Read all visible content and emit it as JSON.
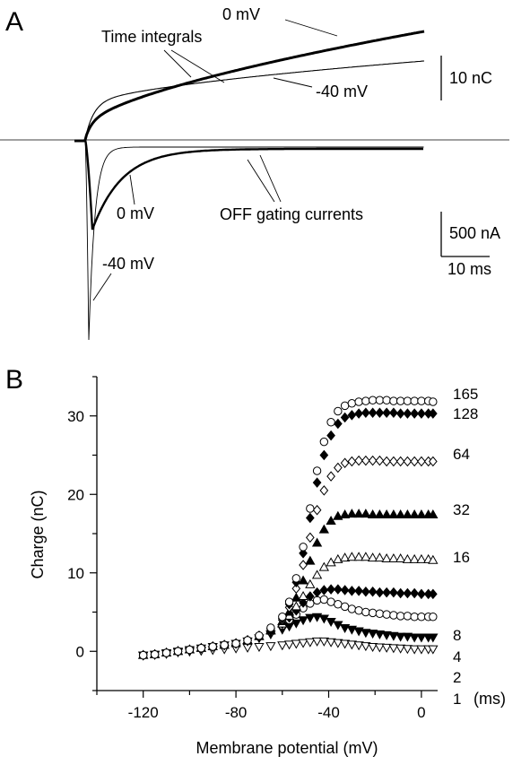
{
  "chart_data": [
    {
      "panel_label": "A",
      "type": "line",
      "annotations": {
        "time_integrals": "Time integrals",
        "off_gating_currents": "OFF gating currents"
      },
      "scalebars": {
        "charge": "10 nC",
        "current": "500 nA",
        "time": "10 ms"
      },
      "series": [
        {
          "name": "0 mV",
          "kind": "time-integral",
          "note_label": "0 mV"
        },
        {
          "name": "-40 mV",
          "kind": "time-integral",
          "note_label": "-40 mV"
        },
        {
          "name": "0 mV",
          "kind": "off-gating-current",
          "note_label": "0 mV"
        },
        {
          "name": "-40 mV",
          "kind": "off-gating-current",
          "note_label": "-40 mV"
        }
      ]
    },
    {
      "panel_label": "B",
      "type": "scatter",
      "xlabel": "Membrane potential (mV)",
      "ylabel": "Charge (nC)",
      "xlim": [
        -140,
        7
      ],
      "ylim": [
        -5,
        35
      ],
      "xticks": [
        -120,
        -80,
        -40,
        0
      ],
      "yticks": [
        0,
        10,
        20,
        30
      ],
      "unit_label": "(ms)",
      "x": [
        -120,
        -115,
        -110,
        -105,
        -100,
        -95,
        -90,
        -85,
        -80,
        -75,
        -70,
        -65,
        -60,
        -57,
        -54,
        -51,
        -48,
        -45,
        -42,
        -39,
        -36,
        -33,
        -30,
        -27,
        -24,
        -21,
        -18,
        -15,
        -12,
        -9,
        -6,
        -3,
        0,
        3,
        5
      ],
      "series": [
        {
          "name": "1",
          "marker": "open-triangle-down",
          "values": [
            -0.5,
            -0.4,
            -0.3,
            -0.1,
            0.0,
            0.1,
            0.2,
            0.3,
            0.4,
            0.5,
            0.6,
            0.7,
            0.8,
            0.9,
            1.0,
            1.1,
            1.2,
            1.3,
            1.3,
            1.2,
            1.1,
            1.0,
            0.9,
            0.8,
            0.7,
            0.6,
            0.55,
            0.5,
            0.45,
            0.4,
            0.35,
            0.3,
            0.3,
            0.3,
            0.3
          ]
        },
        {
          "name": "2",
          "marker": "filled-triangle-down",
          "values": [
            -0.5,
            -0.4,
            -0.2,
            0.0,
            0.2,
            0.4,
            0.6,
            0.8,
            1.0,
            1.3,
            1.7,
            2.2,
            2.8,
            3.2,
            3.6,
            4.0,
            4.3,
            4.4,
            4.2,
            3.8,
            3.4,
            3.0,
            2.8,
            2.6,
            2.4,
            2.3,
            2.2,
            2.1,
            2.0,
            1.9,
            1.9,
            1.8,
            1.8,
            1.8,
            1.8
          ]
        },
        {
          "name": "4",
          "marker": "open-circle",
          "values": [
            -0.5,
            -0.4,
            -0.2,
            0.0,
            0.2,
            0.4,
            0.6,
            0.8,
            1.0,
            1.4,
            1.9,
            2.5,
            3.3,
            4.0,
            4.7,
            5.5,
            6.1,
            6.5,
            6.6,
            6.3,
            6.0,
            5.7,
            5.4,
            5.2,
            5.0,
            4.9,
            4.8,
            4.7,
            4.6,
            4.5,
            4.5,
            4.4,
            4.4,
            4.4,
            4.4
          ]
        },
        {
          "name": "8",
          "marker": "filled-diamond",
          "values": [
            -0.5,
            -0.4,
            -0.2,
            0.0,
            0.2,
            0.4,
            0.6,
            0.8,
            1.0,
            1.4,
            1.9,
            2.6,
            3.5,
            4.3,
            5.2,
            6.2,
            7.0,
            7.5,
            7.8,
            7.9,
            7.9,
            7.8,
            7.7,
            7.7,
            7.6,
            7.6,
            7.5,
            7.5,
            7.5,
            7.4,
            7.4,
            7.4,
            7.3,
            7.3,
            7.3
          ]
        },
        {
          "name": "16",
          "marker": "open-triangle-up",
          "values": [
            -0.5,
            -0.4,
            -0.2,
            0.0,
            0.2,
            0.4,
            0.6,
            0.8,
            1.0,
            1.4,
            1.9,
            2.6,
            3.5,
            4.5,
            5.7,
            7.0,
            8.5,
            9.7,
            10.7,
            11.3,
            11.7,
            11.9,
            12.0,
            12.0,
            12.0,
            11.9,
            11.9,
            11.8,
            11.8,
            11.8,
            11.7,
            11.7,
            11.7,
            11.7,
            11.6
          ]
        },
        {
          "name": "32",
          "marker": "filled-triangle-up",
          "values": [
            -0.5,
            -0.4,
            -0.2,
            0.0,
            0.2,
            0.4,
            0.6,
            0.8,
            1.0,
            1.4,
            1.9,
            2.7,
            3.8,
            5.0,
            6.8,
            9.0,
            11.5,
            13.8,
            15.5,
            16.6,
            17.2,
            17.4,
            17.5,
            17.5,
            17.5,
            17.4,
            17.4,
            17.4,
            17.4,
            17.4,
            17.4,
            17.4,
            17.4,
            17.4,
            17.4
          ]
        },
        {
          "name": "64",
          "marker": "open-diamond",
          "values": [
            -0.5,
            -0.4,
            -0.2,
            0.0,
            0.2,
            0.4,
            0.6,
            0.8,
            1.0,
            1.4,
            1.9,
            2.8,
            4.0,
            5.6,
            8.0,
            11.0,
            14.5,
            18.0,
            20.5,
            22.3,
            23.4,
            24.0,
            24.2,
            24.3,
            24.3,
            24.3,
            24.3,
            24.2,
            24.2,
            24.2,
            24.2,
            24.2,
            24.2,
            24.2,
            24.2
          ]
        },
        {
          "name": "128",
          "marker": "filled-diamond",
          "values": [
            -0.5,
            -0.4,
            -0.2,
            0.0,
            0.2,
            0.4,
            0.6,
            0.8,
            1.0,
            1.4,
            2.0,
            2.9,
            4.2,
            6.0,
            8.8,
            12.5,
            17.0,
            21.5,
            25.0,
            27.5,
            29.0,
            29.8,
            30.1,
            30.3,
            30.4,
            30.4,
            30.4,
            30.4,
            30.4,
            30.3,
            30.3,
            30.3,
            30.3,
            30.3,
            30.3
          ]
        },
        {
          "name": "165",
          "marker": "open-circle",
          "values": [
            -0.5,
            -0.4,
            -0.2,
            0.0,
            0.2,
            0.4,
            0.6,
            0.8,
            1.0,
            1.4,
            2.0,
            3.0,
            4.4,
            6.3,
            9.3,
            13.3,
            18.2,
            23.0,
            26.7,
            29.2,
            30.6,
            31.3,
            31.6,
            31.8,
            31.9,
            32.0,
            32.0,
            32.0,
            31.9,
            31.9,
            31.9,
            31.9,
            31.9,
            31.9,
            31.8
          ]
        }
      ]
    }
  ]
}
